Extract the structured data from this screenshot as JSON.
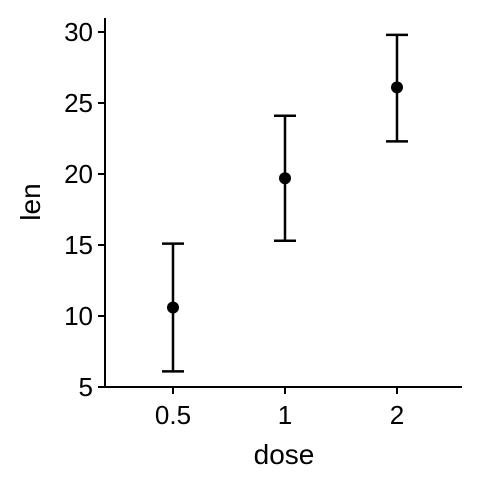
{
  "chart_data": {
    "type": "scatter",
    "title": "",
    "xlabel": "dose",
    "ylabel": "len",
    "categories": [
      "0.5",
      "1",
      "2"
    ],
    "series": [
      {
        "values": [
          10.6,
          19.7,
          26.1
        ],
        "error_low": [
          6.1,
          15.3,
          22.3
        ],
        "error_high": [
          15.1,
          24.1,
          29.8
        ]
      }
    ],
    "ylim": [
      5,
      30
    ],
    "yticks": [
      5,
      10,
      15,
      20,
      25,
      30
    ],
    "grid": false,
    "colors": {
      "points": "#000000",
      "errorbars": "#000000",
      "axes": "#000000"
    }
  }
}
